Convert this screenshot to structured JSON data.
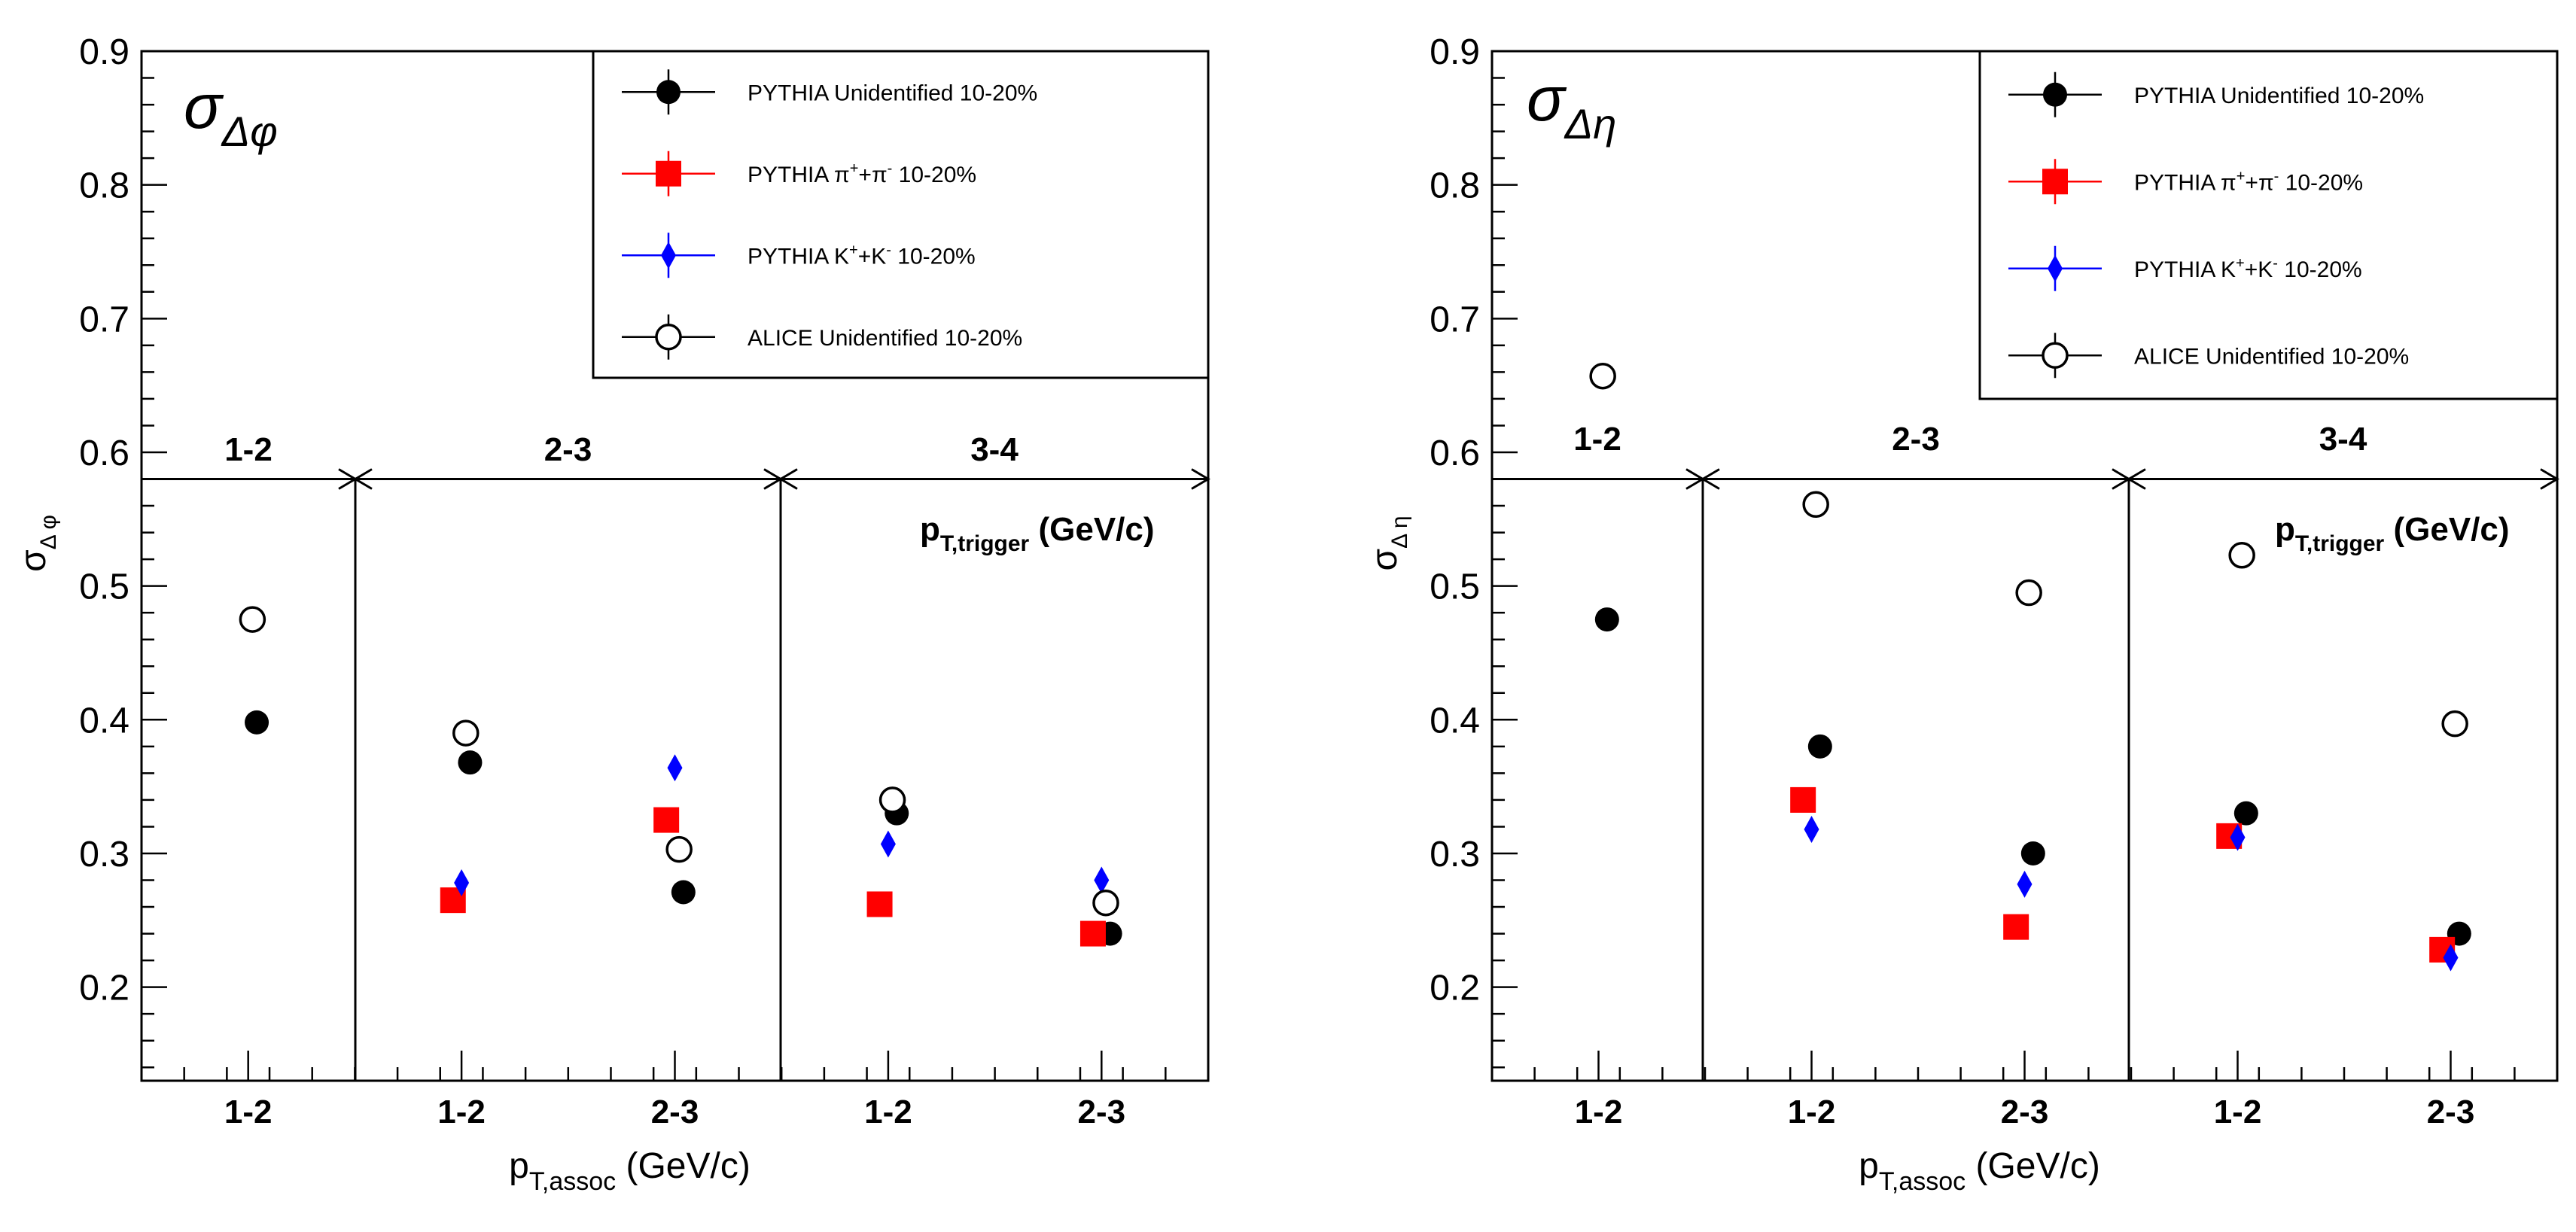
{
  "chart_data": [
    {
      "type": "scatter",
      "title": "σ_Δφ",
      "title_symbol": "σ",
      "title_sub": "Δφ",
      "ylabel_symbol": "σ",
      "ylabel_sub": "Δ φ",
      "xlabel_main": "p",
      "xlabel_sub": "T,assoc",
      "xlabel_units": "(GeV/c)",
      "ylim": [
        0.13,
        0.9
      ],
      "yticks": [
        "0.2",
        "0.3",
        "0.4",
        "0.5",
        "0.6",
        "0.7",
        "0.8",
        "0.9"
      ],
      "trigger_label_main": "p",
      "trigger_label_sub": "T,trigger",
      "trigger_label_units": "(GeV/c)",
      "trigger_line_y": 0.58,
      "segments": [
        {
          "label": "1-2",
          "categories": [
            "1-2"
          ]
        },
        {
          "label": "2-3",
          "categories": [
            "1-2",
            "2-3"
          ]
        },
        {
          "label": "3-4",
          "categories": [
            "1-2",
            "2-3"
          ]
        }
      ],
      "categories": [
        "1-2",
        "1-2",
        "2-3",
        "1-2",
        "2-3"
      ],
      "series": [
        {
          "name": "PYTHIA Unidentified 10-20%",
          "name_main": "PYTHIA Unidentified 10-20%",
          "marker": "filled-circle",
          "color": "#000000",
          "values": [
            0.398,
            0.368,
            0.271,
            0.33,
            0.24
          ]
        },
        {
          "name": "PYTHIA π⁺+π⁻ 10-20%",
          "name_main": "PYTHIA π",
          "name_sup1": "+",
          "name_mid": "+π",
          "name_sup2": "-",
          "name_tail": " 10-20%",
          "marker": "filled-square",
          "color": "#ff0000",
          "values": [
            null,
            0.265,
            0.325,
            0.262,
            0.24
          ]
        },
        {
          "name": "PYTHIA K⁺+K⁻ 10-20%",
          "name_main": "PYTHIA K",
          "name_sup1": "+",
          "name_mid": "+K",
          "name_sup2": "-",
          "name_tail": " 10-20%",
          "marker": "filled-diamond",
          "color": "#0000ff",
          "values": [
            null,
            0.278,
            0.364,
            0.307,
            0.28
          ]
        },
        {
          "name": "ALICE Unidentified 10-20%",
          "name_main": "ALICE Unidentified 10-20%",
          "marker": "open-circle",
          "color": "#000000",
          "values": [
            0.475,
            0.39,
            0.303,
            0.34,
            0.263
          ]
        }
      ]
    },
    {
      "type": "scatter",
      "title": "σ_Δη",
      "title_symbol": "σ",
      "title_sub": "Δη",
      "ylabel_symbol": "σ",
      "ylabel_sub": "Δ η",
      "xlabel_main": "p",
      "xlabel_sub": "T,assoc",
      "xlabel_units": "(GeV/c)",
      "ylim": [
        0.13,
        0.9
      ],
      "yticks": [
        "0.2",
        "0.3",
        "0.4",
        "0.5",
        "0.6",
        "0.7",
        "0.8",
        "0.9"
      ],
      "trigger_label_main": "p",
      "trigger_label_sub": "T,trigger",
      "trigger_label_units": "(GeV/c)",
      "trigger_line_y": 0.58,
      "segments": [
        {
          "label": "1-2",
          "categories": [
            "1-2"
          ]
        },
        {
          "label": "2-3",
          "categories": [
            "1-2",
            "2-3"
          ]
        },
        {
          "label": "3-4",
          "categories": [
            "1-2",
            "2-3"
          ]
        }
      ],
      "categories": [
        "1-2",
        "1-2",
        "2-3",
        "1-2",
        "2-3"
      ],
      "series": [
        {
          "name": "PYTHIA Unidentified 10-20%",
          "name_main": "PYTHIA Unidentified 10-20%",
          "marker": "filled-circle",
          "color": "#000000",
          "values": [
            0.475,
            0.38,
            0.3,
            0.33,
            0.24
          ]
        },
        {
          "name": "PYTHIA π⁺+π⁻ 10-20%",
          "name_main": "PYTHIA π",
          "name_sup1": "+",
          "name_mid": "+π",
          "name_sup2": "-",
          "name_tail": " 10-20%",
          "marker": "filled-square",
          "color": "#ff0000",
          "values": [
            null,
            0.34,
            0.245,
            0.313,
            0.228
          ]
        },
        {
          "name": "PYTHIA K⁺+K⁻ 10-20%",
          "name_main": "PYTHIA K",
          "name_sup1": "+",
          "name_mid": "+K",
          "name_sup2": "-",
          "name_tail": " 10-20%",
          "marker": "filled-diamond",
          "color": "#0000ff",
          "values": [
            null,
            0.318,
            0.277,
            0.312,
            0.222
          ]
        },
        {
          "name": "ALICE Unidentified 10-20%",
          "name_main": "ALICE Unidentified 10-20%",
          "marker": "open-circle",
          "color": "#000000",
          "values": [
            0.657,
            0.561,
            0.495,
            0.523,
            0.397
          ]
        }
      ]
    }
  ]
}
